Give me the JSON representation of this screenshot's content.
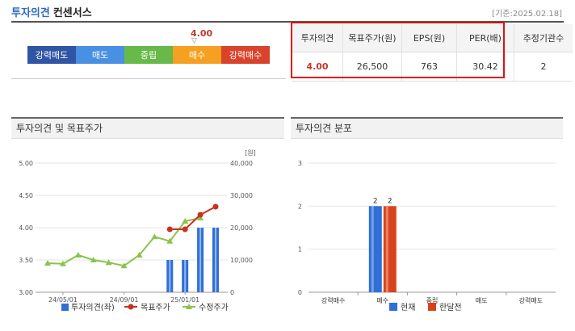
{
  "header": {
    "title_colored": "투자의견",
    "title_rest": "컨센서스",
    "date": "[기준:2025.02.18]"
  },
  "scale": {
    "value": "4.00",
    "arrow": "▽",
    "active_index": 3,
    "items": [
      {
        "label": "강력매도",
        "color": "#2f55a4"
      },
      {
        "label": "매도",
        "color": "#4a90e2"
      },
      {
        "label": "중립",
        "color": "#67b94a"
      },
      {
        "label": "매수",
        "color": "#f5a020"
      },
      {
        "label": "강력매수",
        "color": "#d9432c"
      }
    ]
  },
  "table": {
    "headers": [
      "투자의견",
      "목표주가(원)",
      "EPS(원)",
      "PER(배)",
      "추정기관수"
    ],
    "values": [
      "4.00",
      "26,500",
      "763",
      "30.42",
      "2"
    ]
  },
  "panel_left": {
    "title": "투자의견 및 목표주가"
  },
  "panel_right": {
    "title": "투자의견 분포"
  },
  "chart_data": [
    {
      "type": "line",
      "title": "투자의견 및 목표주가",
      "y_left": {
        "ylim": [
          3.0,
          5.0
        ],
        "ticks": [
          "3.00",
          "3.50",
          "4.00",
          "4.50",
          "5.00"
        ]
      },
      "y_right": {
        "ylim": [
          0,
          40000
        ],
        "ticks": [
          "0",
          "10,000",
          "20,000",
          "30,000",
          "40,000"
        ],
        "unit": "[원]"
      },
      "x_ticks": [
        "24/05/01",
        "24/09/01",
        "25/01/01"
      ],
      "colors": {
        "opinion": "#2e6fd8",
        "target": "#c8321e",
        "adjusted": "#8bc34a"
      },
      "series": [
        {
          "name": "투자의견(좌)",
          "type": "bar",
          "axis": "left",
          "values": [
            null,
            null,
            null,
            null,
            null,
            null,
            null,
            null,
            3.5,
            3.5,
            4.0,
            4.0
          ]
        },
        {
          "name": "목표주가",
          "type": "line",
          "axis": "right",
          "values": [
            null,
            null,
            null,
            null,
            null,
            null,
            null,
            null,
            19500,
            19500,
            24000,
            26500
          ]
        },
        {
          "name": "수정주가",
          "type": "line",
          "axis": "right",
          "values": [
            9000,
            8800,
            11500,
            10000,
            9200,
            8200,
            11500,
            17200,
            15800,
            22000,
            23000,
            null
          ]
        }
      ]
    },
    {
      "type": "bar",
      "title": "투자의견 분포",
      "categories": [
        "강력매수",
        "매수",
        "중립",
        "매도",
        "강력매도"
      ],
      "ylim": [
        0,
        3
      ],
      "yticks": [
        "0",
        "1",
        "2",
        "3"
      ],
      "series": [
        {
          "name": "현재",
          "color": "#2e6fd8",
          "values": [
            0,
            2,
            0,
            0,
            0
          ]
        },
        {
          "name": "한달전",
          "color": "#d9431b",
          "values": [
            0,
            2,
            0,
            0,
            0
          ]
        }
      ]
    }
  ]
}
